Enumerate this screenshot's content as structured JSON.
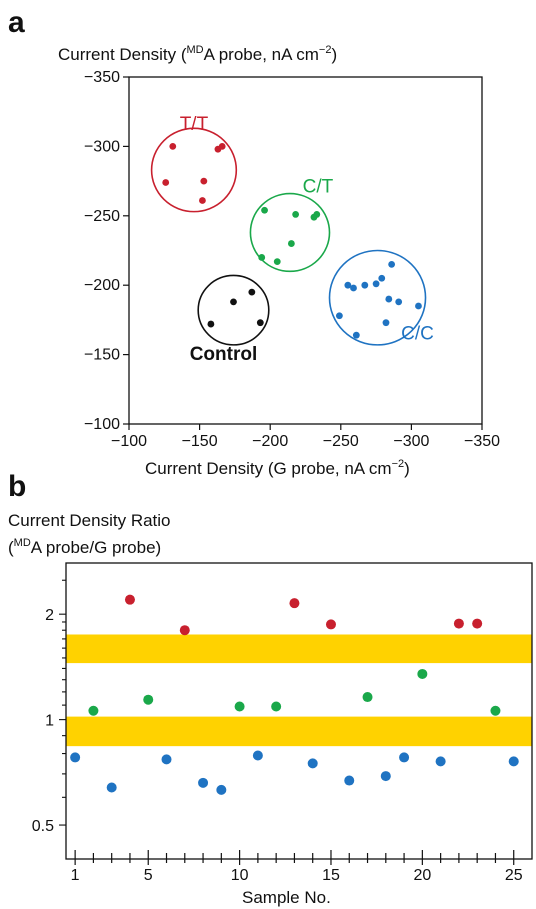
{
  "panel_a": {
    "letter": "a",
    "ylabel_main": "Current Density (",
    "ylabel_sup": "MD",
    "ylabel_rest": "A probe, nA cm",
    "ylabel_exp": "−2",
    "ylabel_close": ")",
    "xlabel_main": "Current Density (G probe, nA cm",
    "xlabel_exp": "−2",
    "xlabel_close": ")"
  },
  "panel_b": {
    "letter": "b",
    "ylabel_line1": "Current Density Ratio",
    "ylabel_line2_open": "(",
    "ylabel_line2_sup": "MD",
    "ylabel_line2_rest": "A probe/G probe)",
    "xlabel": "Sample No."
  },
  "colors": {
    "tt": "#c8202e",
    "ct": "#1aa84a",
    "cc": "#1f73c2",
    "control": "#111111",
    "band": "#ffd200"
  },
  "chart_data": [
    {
      "type": "scatter",
      "title": "",
      "xlabel": "Current Density (G probe, nA cm−2)",
      "ylabel": "Current Density (MDA probe, nA cm−2)",
      "xlim": [
        -100,
        -350
      ],
      "ylim": [
        -100,
        -350
      ],
      "xticks": [
        "−100",
        "−150",
        "−200",
        "−250",
        "−300",
        "−350"
      ],
      "yticks": [
        "−100",
        "−150",
        "−200",
        "−250",
        "−300",
        "−350"
      ],
      "groups": [
        {
          "name": "T/T",
          "color": "#c8202e",
          "points": [
            [
              -131,
              -300
            ],
            [
              -126,
              -274
            ],
            [
              -153,
              -275
            ],
            [
              -152,
              -261
            ],
            [
              -163,
              -298
            ],
            [
              -166,
              -300
            ]
          ],
          "circle": {
            "cx": -146,
            "cy": -283,
            "r": 30
          }
        },
        {
          "name": "C/T",
          "color": "#1aa84a",
          "points": [
            [
              -196,
              -254
            ],
            [
              -218,
              -251
            ],
            [
              -231,
              -249
            ],
            [
              -233,
              -251
            ],
            [
              -215,
              -230
            ],
            [
              -194,
              -220
            ],
            [
              -205,
              -217
            ]
          ],
          "circle": {
            "cx": -214,
            "cy": -238,
            "r": 28
          }
        },
        {
          "name": "C/C",
          "color": "#1f73c2",
          "points": [
            [
              -286,
              -215
            ],
            [
              -255,
              -200
            ],
            [
              -259,
              -198
            ],
            [
              -267,
              -200
            ],
            [
              -275,
              -201
            ],
            [
              -279,
              -205
            ],
            [
              -284,
              -190
            ],
            [
              -291,
              -188
            ],
            [
              -305,
              -185
            ],
            [
              -282,
              -173
            ],
            [
              -249,
              -178
            ],
            [
              -261,
              -164
            ]
          ],
          "circle": {
            "cx": -276,
            "cy": -191,
            "r": 34
          }
        },
        {
          "name": "Control",
          "color": "#111111",
          "points": [
            [
              -174,
              -188
            ],
            [
              -187,
              -195
            ],
            [
              -158,
              -172
            ],
            [
              -193,
              -173
            ]
          ],
          "circle": {
            "cx": -174,
            "cy": -182,
            "r": 25
          }
        }
      ],
      "grid": false
    },
    {
      "type": "scatter",
      "title": "",
      "xlabel": "Sample No.",
      "ylabel": "Current Density Ratio (MDA probe/G probe)",
      "xlim": [
        0.5,
        26
      ],
      "ylim": [
        0.4,
        2.8
      ],
      "yscale": "log",
      "xticks": [
        "1",
        "5",
        "10",
        "15",
        "20",
        "25"
      ],
      "yticks": [
        "0.5",
        "1",
        "2"
      ],
      "bands": [
        [
          0.84,
          1.02
        ],
        [
          1.45,
          1.75
        ]
      ],
      "series": [
        {
          "name": "T/T",
          "color": "#c8202e",
          "x": [
            4,
            7,
            13,
            15,
            22,
            23
          ],
          "y": [
            2.2,
            1.8,
            2.15,
            1.87,
            1.88,
            1.88
          ]
        },
        {
          "name": "C/T",
          "color": "#1aa84a",
          "x": [
            2,
            5,
            10,
            12,
            17,
            20,
            24
          ],
          "y": [
            1.06,
            1.14,
            1.09,
            1.09,
            1.16,
            1.35,
            1.06
          ]
        },
        {
          "name": "C/C",
          "color": "#1f73c2",
          "x": [
            1,
            3,
            6,
            8,
            9,
            11,
            14,
            16,
            18,
            19,
            21,
            25
          ],
          "y": [
            0.78,
            0.64,
            0.77,
            0.66,
            0.63,
            0.79,
            0.75,
            0.67,
            0.69,
            0.78,
            0.76,
            0.76
          ]
        }
      ],
      "grid": false
    }
  ]
}
